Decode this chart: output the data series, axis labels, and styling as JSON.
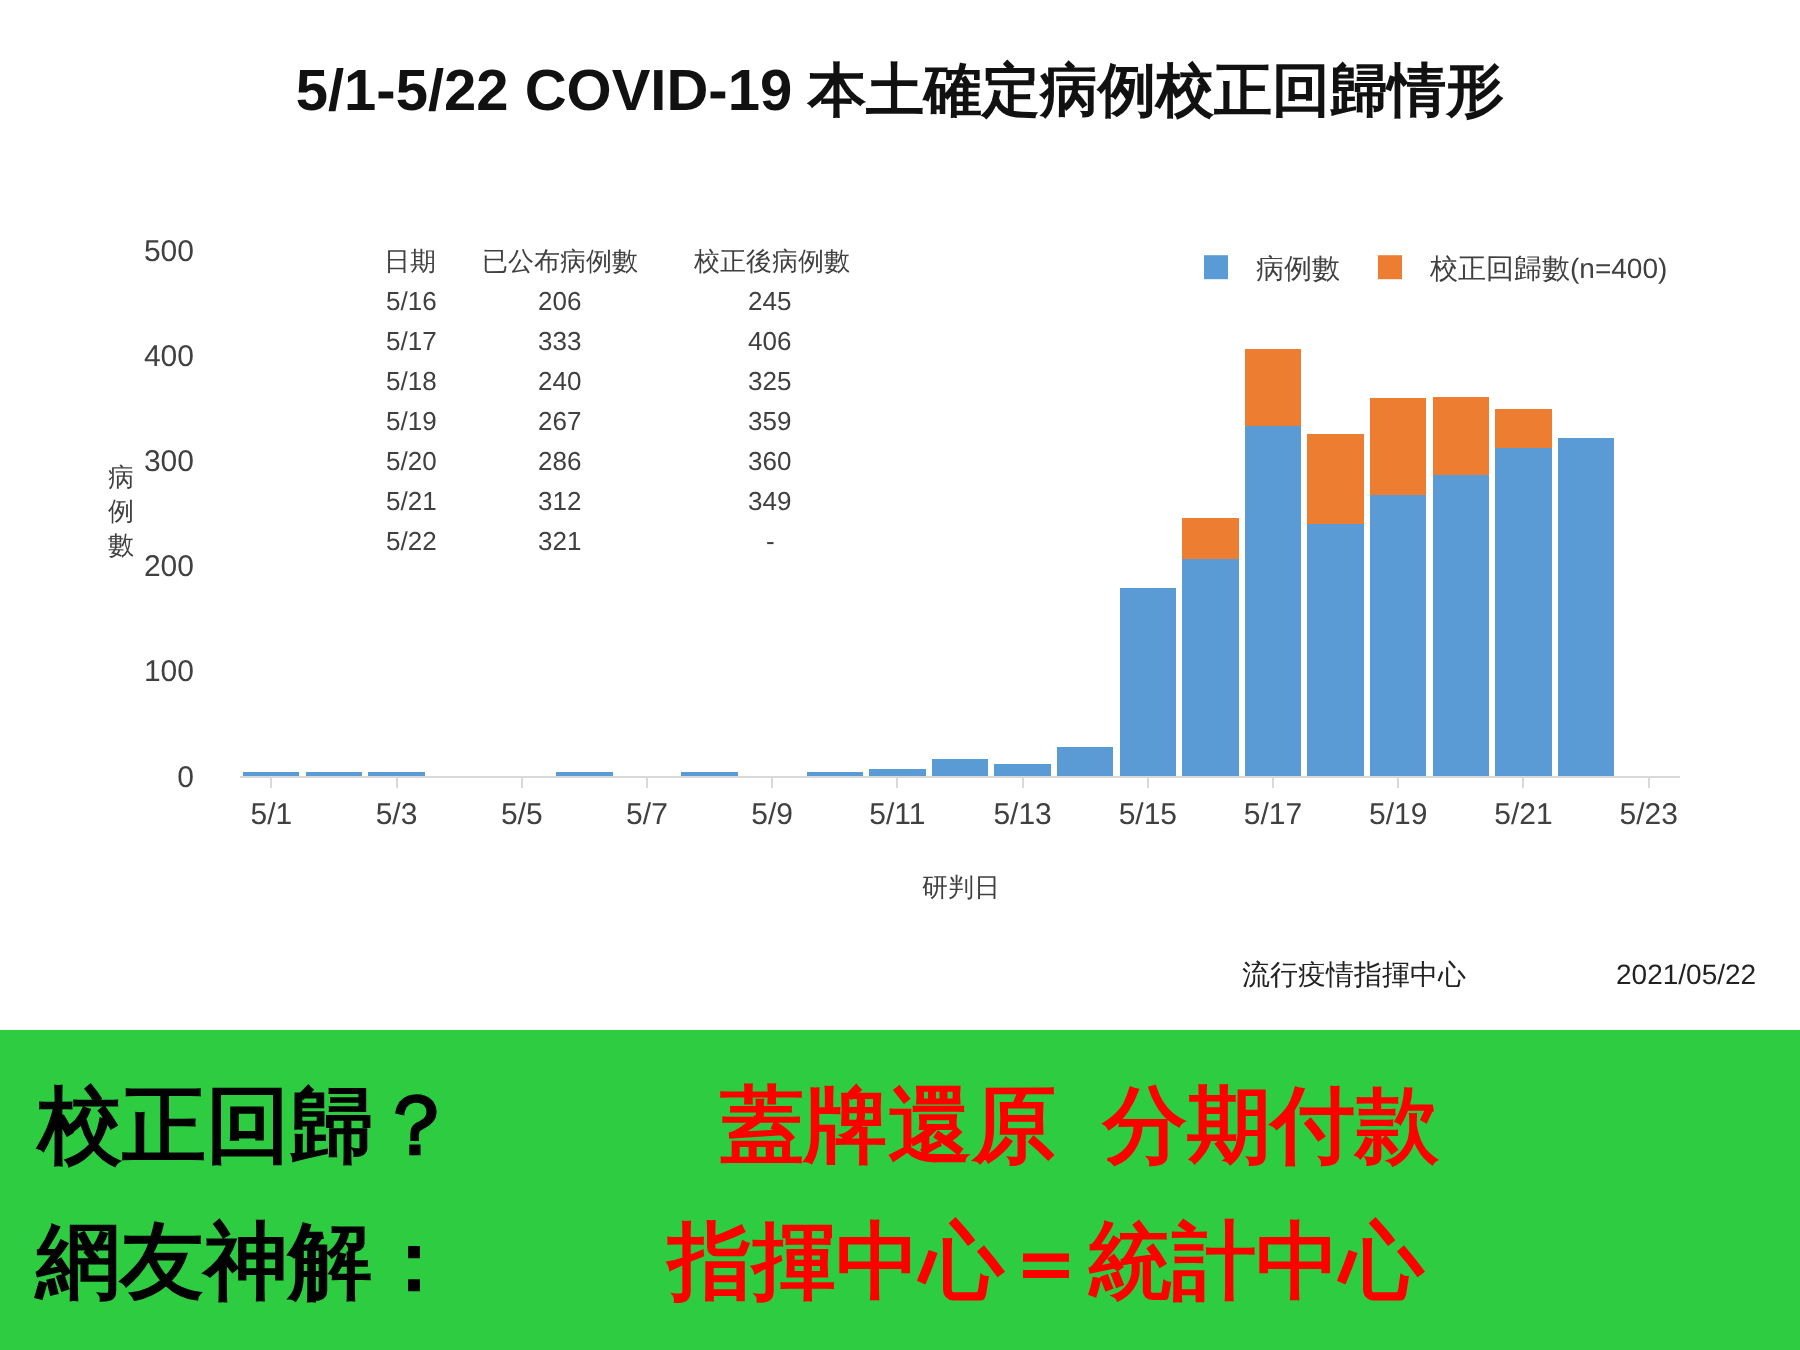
{
  "chart_data": {
    "type": "bar",
    "stacked": true,
    "title": "5/1-5/22 COVID-19 本土確定病例校正回歸情形",
    "xlabel": "研判日",
    "ylabel": "病例數",
    "categories": [
      "5/1",
      null,
      "5/3",
      null,
      "5/5",
      null,
      "5/7",
      null,
      "5/9",
      null,
      "5/11",
      null,
      "5/13",
      null,
      "5/15",
      null,
      "5/17",
      null,
      "5/19",
      null,
      "5/21",
      null,
      "5/23"
    ],
    "series": [
      {
        "name": "病例數",
        "color": "#5b9bd5",
        "values": [
          2,
          2,
          2,
          null,
          null,
          2,
          null,
          2,
          null,
          2,
          7,
          16,
          11,
          28,
          179,
          206,
          333,
          240,
          267,
          286,
          312,
          321,
          null
        ]
      },
      {
        "name": "校正回歸數(n=400)",
        "color": "#ed7d31",
        "values": [
          null,
          null,
          null,
          null,
          null,
          null,
          null,
          null,
          null,
          null,
          null,
          null,
          null,
          null,
          null,
          39,
          73,
          85,
          92,
          74,
          37,
          null,
          null
        ]
      }
    ],
    "ylim": [
      0,
      500
    ],
    "yticks": [
      0,
      100,
      200,
      300,
      400,
      500
    ],
    "grid": false,
    "legend": "top right",
    "annotations": [
      "日期",
      "已公布病例數",
      "校正後病例數",
      "5/16",
      "206",
      "245",
      "5/17",
      "333",
      "406",
      "5/18",
      "240",
      "325",
      "5/19",
      "267",
      "359",
      "5/20",
      "286",
      "360",
      "5/21",
      "312",
      "349",
      "5/22",
      "321",
      "-",
      "流行疫情指揮中心",
      "2021/05/22",
      "校正回歸？",
      "蓋牌還原  分期付款",
      "網友神解：",
      "指揮中心＝統計中心"
    ]
  }
}
